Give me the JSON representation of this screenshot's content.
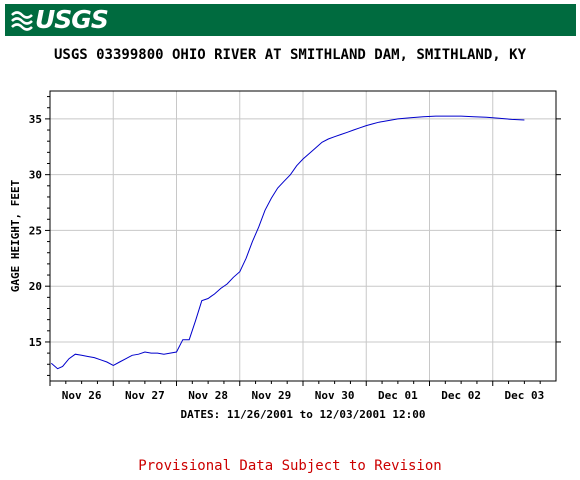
{
  "banner": {
    "logo_text": "USGS",
    "color": "#006b3f"
  },
  "title": "USGS 03399800 OHIO RIVER AT SMITHLAND DAM, SMITHLAND, KY",
  "footer": {
    "text": "Provisional Data Subject to Revision",
    "color": "#cc0000"
  },
  "chart_data": {
    "type": "line",
    "title": "USGS 03399800 OHIO RIVER AT SMITHLAND DAM, SMITHLAND, KY",
    "xlabel": "DATES: 11/26/2001 to 12/03/2001 12:00",
    "ylabel": "GAGE HEIGHT, FEET",
    "x_ticks": [
      "Nov 26",
      "Nov 27",
      "Nov 28",
      "Nov 29",
      "Nov 30",
      "Dec 01",
      "Dec 02",
      "Dec 03"
    ],
    "x_range_days": [
      -0.5,
      7.5
    ],
    "ylim": [
      11.5,
      37.5
    ],
    "y_ticks": [
      15,
      20,
      25,
      30,
      35
    ],
    "grid": true,
    "line_color": "#0000cc",
    "series": [
      {
        "x": [
          -0.48,
          -0.38,
          -0.3,
          -0.2,
          -0.1,
          0.0,
          0.1,
          0.2,
          0.3,
          0.4,
          0.5,
          0.6,
          0.7,
          0.8,
          0.9,
          1.0,
          1.1,
          1.2,
          1.3,
          1.4,
          1.5,
          1.6,
          1.7,
          1.8,
          1.9,
          2.0,
          2.05,
          2.1,
          2.2,
          2.3,
          2.4,
          2.5,
          2.6,
          2.7,
          2.8,
          2.9,
          3.0,
          3.1,
          3.2,
          3.3,
          3.4,
          3.5,
          3.6,
          3.7,
          3.8,
          3.9,
          4.0,
          4.1,
          4.2,
          4.3,
          4.4,
          4.5,
          4.6,
          4.7,
          4.8,
          4.9,
          5.0,
          5.2,
          5.4,
          5.6,
          5.8,
          6.0,
          6.2,
          6.4,
          6.6,
          6.8,
          7.0
        ],
        "y": [
          13.1,
          12.6,
          12.8,
          13.5,
          13.9,
          13.8,
          13.7,
          13.6,
          13.4,
          13.2,
          12.9,
          13.2,
          13.5,
          13.8,
          13.9,
          14.1,
          14.0,
          14.0,
          13.9,
          14.0,
          14.1,
          15.2,
          15.2,
          16.9,
          18.7,
          18.9,
          19.1,
          19.3,
          19.8,
          20.2,
          20.8,
          21.3,
          22.5,
          24.0,
          25.3,
          26.8,
          27.9,
          28.8,
          29.4,
          30.0,
          30.8,
          31.4,
          31.9,
          32.4,
          32.9,
          33.2,
          33.4,
          33.6,
          33.8,
          34.0,
          34.2,
          34.4,
          34.55,
          34.7,
          34.8,
          34.9,
          35.0,
          35.1,
          35.2,
          35.25,
          35.25,
          35.25,
          35.2,
          35.15,
          35.05,
          34.95,
          34.9
        ]
      }
    ]
  }
}
